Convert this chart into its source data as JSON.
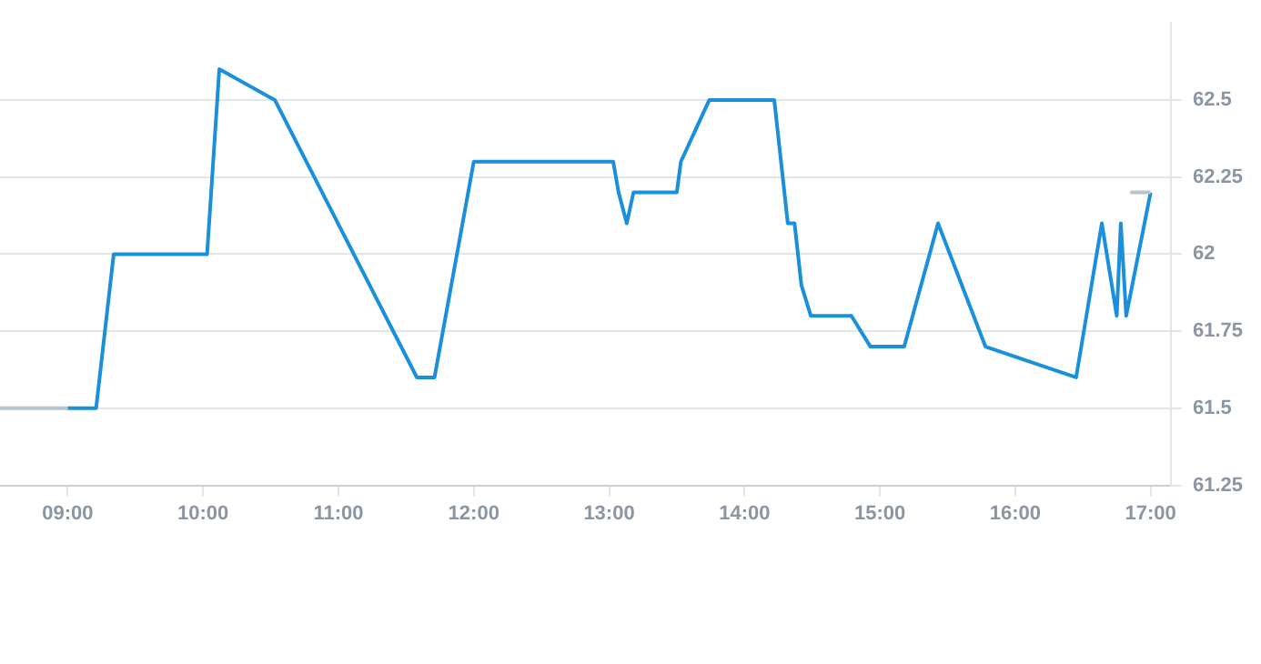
{
  "chart_data": {
    "type": "line",
    "xlim": [
      8.5,
      17.15
    ],
    "ylim": [
      61.25,
      62.75
    ],
    "xticks": [
      {
        "value": 9,
        "label": "09:00"
      },
      {
        "value": 10,
        "label": "10:00"
      },
      {
        "value": 11,
        "label": "11:00"
      },
      {
        "value": 12,
        "label": "12:00"
      },
      {
        "value": 13,
        "label": "13:00"
      },
      {
        "value": 14,
        "label": "14:00"
      },
      {
        "value": 15,
        "label": "15:00"
      },
      {
        "value": 16,
        "label": "16:00"
      },
      {
        "value": 17,
        "label": "17:00"
      }
    ],
    "yticks": [
      61.25,
      61.5,
      61.75,
      62,
      62.25,
      62.5
    ],
    "grid": "y",
    "marker": "none",
    "line_style": "solid",
    "series": [
      {
        "color": "#b8c4cc",
        "x": [
          8.5,
          9.0
        ],
        "values": [
          61.5,
          61.5
        ]
      },
      {
        "color": "#b8c4cc",
        "x": [
          16.85,
          17.0
        ],
        "values": [
          62.2,
          62.2
        ]
      },
      {
        "color": "#1a8fdc",
        "x": [
          9.0,
          9.21,
          9.34,
          10.03,
          10.12,
          10.53,
          11.58,
          11.71,
          12.0,
          13.03,
          13.07,
          13.13,
          13.18,
          13.5,
          13.53,
          13.74,
          14.22,
          14.32,
          14.37,
          14.42,
          14.49,
          14.79,
          14.93,
          15.18,
          15.43,
          15.78,
          16.45,
          16.64,
          16.75,
          16.78,
          16.82,
          17.0
        ],
        "values": [
          61.5,
          61.5,
          62.0,
          62.0,
          62.6,
          62.5,
          61.6,
          61.6,
          62.3,
          62.3,
          62.2,
          62.1,
          62.2,
          62.2,
          62.3,
          62.5,
          62.5,
          62.1,
          62.1,
          61.9,
          61.8,
          61.8,
          61.7,
          61.7,
          62.1,
          61.7,
          61.6,
          62.1,
          61.8,
          62.1,
          61.8,
          62.2
        ]
      }
    ]
  }
}
